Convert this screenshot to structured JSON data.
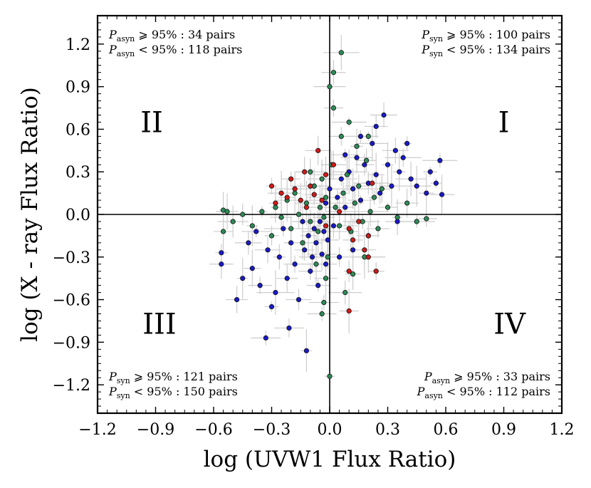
{
  "chart_data": {
    "type": "scatter",
    "xlabel": "log (UVW1 Flux Ratio)",
    "ylabel": "log (X - ray Flux Ratio)",
    "xlim": [
      -1.2,
      1.2
    ],
    "ylim": [
      -1.4,
      1.4
    ],
    "xticks": [
      -1.2,
      -0.9,
      -0.6,
      -0.3,
      0.0,
      0.3,
      0.6,
      0.9,
      1.2
    ],
    "xtick_labels": [
      "−1.2",
      "−0.9",
      "−0.6",
      "−0.3",
      "0.0",
      "0.3",
      "0.6",
      "0.9",
      "1.2"
    ],
    "yticks": [
      1.2,
      0.9,
      0.6,
      0.3,
      0.0,
      -0.3,
      -0.6,
      -0.9,
      -1.2
    ],
    "ytick_labels": [
      "1.2",
      "0.9",
      "0.6",
      "0.3",
      "0.0",
      "−0.3",
      "−0.6",
      "−0.9",
      "−1.2"
    ],
    "reference_lines": {
      "x": 0.0,
      "y": 0.0
    },
    "grid": false,
    "quadrant_labels": [
      {
        "label": "I",
        "x": 0.9,
        "y": 0.58
      },
      {
        "label": "II",
        "x": -0.92,
        "y": 0.58
      },
      {
        "label": "III",
        "x": -0.88,
        "y": -0.84
      },
      {
        "label": "IV",
        "x": 0.93,
        "y": -0.84
      }
    ],
    "annotations": [
      {
        "label": "P",
        "sub": "asyn",
        "rest": " ⩾ 95% : 34 pairs",
        "pos": "top-left",
        "row": 0
      },
      {
        "label": "P",
        "sub": "asyn",
        "rest": " < 95% : 118 pairs",
        "pos": "top-left",
        "row": 1
      },
      {
        "label": "P",
        "sub": "syn",
        "rest": " ⩾ 95% : 100 pairs",
        "pos": "top-right",
        "row": 0
      },
      {
        "label": "P",
        "sub": "syn",
        "rest": " < 95% : 134 pairs",
        "pos": "top-right",
        "row": 1
      },
      {
        "label": "P",
        "sub": "syn",
        "rest": " ⩾ 95% : 121 pairs",
        "pos": "bottom-left",
        "row": 0
      },
      {
        "label": "P",
        "sub": "syn",
        "rest": " < 95% : 150 pairs",
        "pos": "bottom-left",
        "row": 1
      },
      {
        "label": "P",
        "sub": "asyn",
        "rest": " ⩾ 95% : 33 pairs",
        "pos": "bottom-right",
        "row": 0
      },
      {
        "label": "P",
        "sub": "asyn",
        "rest": " < 95% : 112 pairs",
        "pos": "bottom-right",
        "row": 1
      }
    ],
    "series": [
      {
        "color": "#1a1ac8",
        "points": [
          [
            -0.56,
            -0.35
          ],
          [
            -0.56,
            -0.27
          ],
          [
            -0.48,
            -0.6
          ],
          [
            -0.45,
            -0.45
          ],
          [
            -0.42,
            -0.2
          ],
          [
            -0.4,
            -0.38
          ],
          [
            -0.38,
            -0.12
          ],
          [
            -0.36,
            -0.5
          ],
          [
            -0.33,
            -0.87
          ],
          [
            -0.32,
            -0.25
          ],
          [
            -0.3,
            -0.65
          ],
          [
            -0.28,
            -0.55
          ],
          [
            -0.26,
            -0.3
          ],
          [
            -0.24,
            -0.1
          ],
          [
            -0.22,
            -0.45
          ],
          [
            -0.21,
            -0.8
          ],
          [
            -0.2,
            -0.2
          ],
          [
            -0.18,
            -0.35
          ],
          [
            -0.16,
            -0.6
          ],
          [
            -0.14,
            -0.05
          ],
          [
            -0.13,
            -0.25
          ],
          [
            -0.12,
            -0.96
          ],
          [
            -0.11,
            -0.15
          ],
          [
            -0.1,
            -0.4
          ],
          [
            -0.09,
            -0.3
          ],
          [
            -0.08,
            -0.1
          ],
          [
            -0.07,
            -0.2
          ],
          [
            -0.06,
            -0.5
          ],
          [
            -0.05,
            -0.05
          ],
          [
            -0.04,
            -0.28
          ],
          [
            -0.03,
            -0.12
          ],
          [
            -0.02,
            -0.35
          ],
          [
            -0.01,
            -0.18
          ],
          [
            0.02,
            -0.08
          ],
          [
            0.04,
            0.12
          ],
          [
            0.06,
            0.25
          ],
          [
            0.08,
            0.05
          ],
          [
            0.1,
            0.3
          ],
          [
            0.12,
            0.18
          ],
          [
            0.14,
            0.4
          ],
          [
            0.16,
            0.1
          ],
          [
            0.18,
            0.35
          ],
          [
            0.2,
            0.22
          ],
          [
            0.22,
            0.5
          ],
          [
            0.24,
            0.28
          ],
          [
            0.26,
            0.15
          ],
          [
            0.28,
            0.7
          ],
          [
            0.3,
            0.35
          ],
          [
            0.32,
            0.2
          ],
          [
            0.34,
            0.45
          ],
          [
            0.36,
            0.3
          ],
          [
            0.38,
            0.4
          ],
          [
            0.4,
            0.5
          ],
          [
            0.42,
            0.25
          ],
          [
            0.45,
            0.2
          ],
          [
            0.5,
            0.15
          ],
          [
            0.52,
            0.3
          ],
          [
            0.55,
            0.22
          ],
          [
            0.58,
            0.14
          ],
          [
            0.57,
            0.38
          ],
          [
            0.35,
            -0.05
          ],
          [
            0.2,
            -0.15
          ],
          [
            0.12,
            -0.25
          ],
          [
            0.05,
            -0.3
          ],
          [
            -0.02,
            0.08
          ],
          [
            0.0,
            0.18
          ],
          [
            0.08,
            0.42
          ],
          [
            0.16,
            0.55
          ],
          [
            0.24,
            0.62
          ]
        ]
      },
      {
        "color": "#2e8b57",
        "points": [
          [
            -0.55,
            0.03
          ],
          [
            -0.53,
            0.02
          ],
          [
            -0.55,
            -0.12
          ],
          [
            -0.5,
            -0.05
          ],
          [
            -0.45,
            0.0
          ],
          [
            -0.4,
            -0.08
          ],
          [
            -0.35,
            0.02
          ],
          [
            -0.3,
            -0.15
          ],
          [
            -0.28,
            0.05
          ],
          [
            -0.25,
            -0.02
          ],
          [
            -0.22,
            0.1
          ],
          [
            -0.2,
            -0.1
          ],
          [
            -0.18,
            0.15
          ],
          [
            -0.16,
            0.0
          ],
          [
            -0.14,
            -0.2
          ],
          [
            -0.12,
            0.08
          ],
          [
            -0.1,
            -0.05
          ],
          [
            -0.08,
            0.2
          ],
          [
            -0.06,
            -0.12
          ],
          [
            -0.05,
            0.05
          ],
          [
            -0.04,
            0.25
          ],
          [
            -0.03,
            -0.02
          ],
          [
            -0.02,
            0.12
          ],
          [
            -0.01,
            -0.3
          ],
          [
            0.0,
            0.9
          ],
          [
            0.02,
            1.0
          ],
          [
            0.06,
            1.14
          ],
          [
            0.0,
            -1.14
          ],
          [
            -0.02,
            -0.45
          ],
          [
            -0.04,
            -0.7
          ],
          [
            -0.03,
            -0.62
          ],
          [
            0.01,
            0.35
          ],
          [
            0.03,
            0.05
          ],
          [
            0.05,
            -0.08
          ],
          [
            0.07,
            0.15
          ],
          [
            0.09,
            0.28
          ],
          [
            0.11,
            -0.12
          ],
          [
            0.13,
            0.08
          ],
          [
            0.15,
            0.2
          ],
          [
            0.17,
            -0.05
          ],
          [
            0.19,
            0.38
          ],
          [
            0.21,
            0.02
          ],
          [
            0.23,
            0.12
          ],
          [
            0.25,
            -0.1
          ],
          [
            0.27,
            0.18
          ],
          [
            0.3,
            0.05
          ],
          [
            0.35,
            -0.02
          ],
          [
            0.4,
            0.08
          ],
          [
            0.45,
            -0.05
          ],
          [
            0.5,
            -0.03
          ],
          [
            0.2,
            0.55
          ],
          [
            0.14,
            0.48
          ],
          [
            0.1,
            0.65
          ],
          [
            0.06,
            0.55
          ],
          [
            0.02,
            0.75
          ],
          [
            -0.1,
            0.3
          ],
          [
            0.12,
            -0.42
          ],
          [
            0.18,
            -0.3
          ],
          [
            -0.07,
            -0.35
          ],
          [
            0.08,
            -0.55
          ]
        ]
      },
      {
        "color": "#d11a1a",
        "points": [
          [
            -0.3,
            0.2
          ],
          [
            -0.28,
            0.08
          ],
          [
            -0.25,
            0.15
          ],
          [
            -0.22,
            0.12
          ],
          [
            -0.2,
            0.25
          ],
          [
            -0.18,
            0.18
          ],
          [
            -0.15,
            0.1
          ],
          [
            -0.13,
            0.3
          ],
          [
            -0.12,
            0.05
          ],
          [
            -0.1,
            0.2
          ],
          [
            -0.08,
            0.14
          ],
          [
            -0.06,
            0.45
          ],
          [
            -0.04,
            0.1
          ],
          [
            -0.02,
            0.28
          ],
          [
            0.02,
            0.35
          ],
          [
            0.05,
            0.02
          ],
          [
            0.1,
            -0.1
          ],
          [
            0.12,
            -0.18
          ],
          [
            0.15,
            -0.05
          ],
          [
            0.18,
            -0.25
          ],
          [
            0.2,
            -0.15
          ],
          [
            0.22,
            0.22
          ],
          [
            0.24,
            -0.4
          ],
          [
            0.1,
            -0.4
          ],
          [
            0.1,
            -0.68
          ],
          [
            0.2,
            -0.3
          ],
          [
            -0.02,
            -0.08
          ]
        ]
      }
    ]
  }
}
